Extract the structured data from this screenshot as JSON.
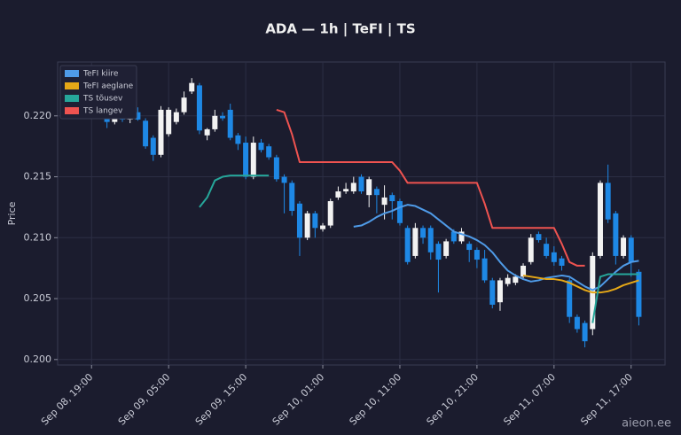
{
  "chart_data": {
    "type": "candlestick",
    "title": "ADA — 1h  |  TeFI  |  TS",
    "ylabel": "Price",
    "watermark": "aieon.ee",
    "x": [
      "Sep 08, 21:00",
      "Sep 08, 22:00",
      "Sep 08, 23:00",
      "Sep 09, 00:00",
      "Sep 09, 01:00",
      "Sep 09, 02:00",
      "Sep 09, 03:00",
      "Sep 09, 04:00",
      "Sep 09, 05:00",
      "Sep 09, 06:00",
      "Sep 09, 07:00",
      "Sep 09, 08:00",
      "Sep 09, 09:00",
      "Sep 09, 10:00",
      "Sep 09, 11:00",
      "Sep 09, 12:00",
      "Sep 09, 13:00",
      "Sep 09, 14:00",
      "Sep 09, 15:00",
      "Sep 09, 16:00",
      "Sep 09, 17:00",
      "Sep 09, 18:00",
      "Sep 09, 19:00",
      "Sep 09, 20:00",
      "Sep 09, 21:00",
      "Sep 09, 22:00",
      "Sep 09, 23:00",
      "Sep 10, 00:00",
      "Sep 10, 01:00",
      "Sep 10, 02:00",
      "Sep 10, 03:00",
      "Sep 10, 04:00",
      "Sep 10, 05:00",
      "Sep 10, 06:00",
      "Sep 10, 07:00",
      "Sep 10, 08:00",
      "Sep 10, 09:00",
      "Sep 10, 10:00",
      "Sep 10, 11:00",
      "Sep 10, 12:00",
      "Sep 10, 13:00",
      "Sep 10, 14:00",
      "Sep 10, 15:00",
      "Sep 10, 16:00",
      "Sep 10, 17:00",
      "Sep 10, 18:00",
      "Sep 10, 19:00",
      "Sep 10, 20:00",
      "Sep 10, 21:00",
      "Sep 10, 22:00",
      "Sep 10, 23:00",
      "Sep 11, 00:00",
      "Sep 11, 01:00",
      "Sep 11, 02:00",
      "Sep 11, 03:00",
      "Sep 11, 04:00",
      "Sep 11, 05:00",
      "Sep 11, 06:00",
      "Sep 11, 07:00",
      "Sep 11, 08:00",
      "Sep 11, 09:00",
      "Sep 11, 10:00",
      "Sep 11, 11:00",
      "Sep 11, 12:00",
      "Sep 11, 13:00",
      "Sep 11, 14:00",
      "Sep 11, 15:00",
      "Sep 11, 16:00",
      "Sep 11, 17:00",
      "Sep 11, 18:00"
    ],
    "open": [
      0.2203,
      0.2195,
      0.22,
      0.2197,
      0.2203,
      0.2196,
      0.2182,
      0.2168,
      0.2185,
      0.2195,
      0.2203,
      0.222,
      0.2225,
      0.2184,
      0.2189,
      0.22,
      0.2205,
      0.2184,
      0.2178,
      0.215,
      0.2178,
      0.2175,
      0.2166,
      0.215,
      0.2145,
      0.2128,
      0.21,
      0.212,
      0.2107,
      0.211,
      0.2133,
      0.2138,
      0.2138,
      0.215,
      0.2135,
      0.214,
      0.2127,
      0.2135,
      0.213,
      0.2108,
      0.2085,
      0.2108,
      0.2108,
      0.2095,
      0.2085,
      0.2105,
      0.2097,
      0.2095,
      0.209,
      0.2083,
      0.2065,
      0.2047,
      0.2062,
      0.2063,
      0.2068,
      0.208,
      0.2103,
      0.2095,
      0.2088,
      0.2083,
      0.2065,
      0.2035,
      0.203,
      0.2025,
      0.2085,
      0.2145,
      0.212,
      0.2085,
      0.21,
      0.2072
    ],
    "high": [
      0.2208,
      0.2205,
      0.2205,
      0.2206,
      0.2207,
      0.2198,
      0.2184,
      0.2208,
      0.2207,
      0.2206,
      0.222,
      0.2231,
      0.2227,
      0.219,
      0.2205,
      0.2203,
      0.221,
      0.2186,
      0.2183,
      0.2183,
      0.2181,
      0.2177,
      0.2168,
      0.2152,
      0.2147,
      0.213,
      0.2122,
      0.2122,
      0.2112,
      0.2132,
      0.2142,
      0.2145,
      0.215,
      0.2152,
      0.215,
      0.2142,
      0.2143,
      0.2137,
      0.2132,
      0.211,
      0.2112,
      0.211,
      0.211,
      0.2097,
      0.2099,
      0.2107,
      0.2108,
      0.2097,
      0.2092,
      0.209,
      0.2067,
      0.2067,
      0.207,
      0.207,
      0.2079,
      0.2103,
      0.2105,
      0.21,
      0.2093,
      0.2085,
      0.2067,
      0.2037,
      0.2032,
      0.2088,
      0.2147,
      0.216,
      0.2122,
      0.2102,
      0.2102,
      0.2074
    ],
    "low": [
      0.219,
      0.2193,
      0.2195,
      0.2194,
      0.2196,
      0.2173,
      0.2163,
      0.2166,
      0.2183,
      0.2193,
      0.2201,
      0.2218,
      0.2185,
      0.218,
      0.2187,
      0.2196,
      0.218,
      0.2172,
      0.2148,
      0.2148,
      0.217,
      0.2164,
      0.2146,
      0.212,
      0.2118,
      0.2085,
      0.2098,
      0.21,
      0.2105,
      0.2108,
      0.2131,
      0.2136,
      0.2136,
      0.2136,
      0.2125,
      0.212,
      0.2115,
      0.2115,
      0.211,
      0.2078,
      0.2083,
      0.2095,
      0.2082,
      0.2055,
      0.2083,
      0.2095,
      0.2095,
      0.208,
      0.2075,
      0.2063,
      0.2042,
      0.204,
      0.206,
      0.2061,
      0.2066,
      0.2078,
      0.2096,
      0.2083,
      0.2077,
      0.2073,
      0.203,
      0.2022,
      0.201,
      0.202,
      0.2083,
      0.2112,
      0.2078,
      0.2083,
      0.2068,
      0.2028
    ],
    "close": [
      0.2195,
      0.22,
      0.2197,
      0.2203,
      0.2197,
      0.2175,
      0.2168,
      0.2205,
      0.2205,
      0.2203,
      0.2215,
      0.2227,
      0.2188,
      0.2189,
      0.22,
      0.2198,
      0.2182,
      0.2177,
      0.215,
      0.2178,
      0.2172,
      0.2166,
      0.2148,
      0.2145,
      0.2122,
      0.21,
      0.212,
      0.2108,
      0.211,
      0.213,
      0.2138,
      0.214,
      0.2145,
      0.2138,
      0.2148,
      0.2135,
      0.2133,
      0.213,
      0.2112,
      0.208,
      0.2108,
      0.21,
      0.2088,
      0.2082,
      0.2097,
      0.2097,
      0.2105,
      0.209,
      0.2082,
      0.2065,
      0.2045,
      0.2065,
      0.2067,
      0.2068,
      0.2077,
      0.21,
      0.2098,
      0.2085,
      0.208,
      0.2077,
      0.2035,
      0.2025,
      0.2015,
      0.2085,
      0.2145,
      0.2115,
      0.2085,
      0.21,
      0.208,
      0.2035
    ],
    "up_color": "#f2f2f2",
    "down_color": "#1e88e5",
    "series": [
      {
        "name": "TeFI kiire",
        "color": "#4f9be8",
        "values": [
          null,
          null,
          null,
          null,
          null,
          null,
          null,
          null,
          null,
          null,
          null,
          null,
          null,
          null,
          null,
          null,
          null,
          null,
          null,
          null,
          null,
          null,
          null,
          null,
          null,
          null,
          null,
          null,
          null,
          null,
          null,
          null,
          0.2109,
          0.211,
          0.2113,
          0.2117,
          0.212,
          0.2122,
          0.2125,
          0.2127,
          0.2126,
          0.2123,
          0.212,
          0.2115,
          0.211,
          0.2105,
          0.2103,
          0.2101,
          0.2098,
          0.2094,
          0.2088,
          0.208,
          0.2073,
          0.2069,
          0.2066,
          0.2064,
          0.2065,
          0.2067,
          0.2068,
          0.2069,
          0.2068,
          0.2064,
          0.206,
          0.2057,
          0.206,
          0.2066,
          0.2072,
          0.2077,
          0.208,
          0.2081
        ]
      },
      {
        "name": "TeFI aeglane",
        "color": "#e6a817",
        "values": [
          null,
          null,
          null,
          null,
          null,
          null,
          null,
          null,
          null,
          null,
          null,
          null,
          null,
          null,
          null,
          null,
          null,
          null,
          null,
          null,
          null,
          null,
          null,
          null,
          null,
          null,
          null,
          null,
          null,
          null,
          null,
          null,
          null,
          null,
          null,
          null,
          null,
          null,
          null,
          null,
          null,
          null,
          null,
          null,
          null,
          null,
          null,
          null,
          null,
          null,
          null,
          null,
          null,
          null,
          0.2069,
          0.2068,
          0.2067,
          0.2066,
          0.2066,
          0.2065,
          0.2063,
          0.206,
          0.2057,
          0.2055,
          0.2055,
          0.2056,
          0.2058,
          0.2061,
          0.2063,
          0.2065
        ]
      },
      {
        "name": "TS tõusev",
        "color": "#26a69a",
        "values": [
          null,
          null,
          null,
          null,
          null,
          null,
          null,
          null,
          null,
          null,
          null,
          null,
          0.2125,
          0.2133,
          0.2147,
          0.215,
          0.2151,
          0.2151,
          0.2151,
          0.2151,
          0.2151,
          0.2151,
          null,
          null,
          null,
          null,
          null,
          null,
          null,
          null,
          null,
          null,
          null,
          null,
          null,
          null,
          null,
          null,
          null,
          null,
          null,
          null,
          null,
          null,
          null,
          null,
          null,
          null,
          null,
          null,
          null,
          null,
          null,
          null,
          null,
          null,
          null,
          null,
          null,
          null,
          null,
          null,
          null,
          0.203,
          0.2068,
          0.207,
          0.207,
          0.207,
          0.207,
          0.207
        ]
      },
      {
        "name": "TS langev",
        "color": "#ef5350",
        "values": [
          null,
          null,
          null,
          null,
          null,
          null,
          null,
          null,
          null,
          null,
          null,
          null,
          null,
          null,
          null,
          null,
          null,
          null,
          null,
          null,
          null,
          null,
          0.2205,
          0.2203,
          0.2185,
          0.2162,
          0.2162,
          0.2162,
          0.2162,
          0.2162,
          0.2162,
          0.2162,
          0.2162,
          0.2162,
          0.2162,
          0.2162,
          0.2162,
          0.2162,
          0.2155,
          0.2145,
          0.2145,
          0.2145,
          0.2145,
          0.2145,
          0.2145,
          0.2145,
          0.2145,
          0.2145,
          0.2145,
          0.2128,
          0.2108,
          0.2108,
          0.2108,
          0.2108,
          0.2108,
          0.2108,
          0.2108,
          0.2108,
          0.2108,
          0.2095,
          0.208,
          0.2077,
          0.2077,
          null,
          null,
          null,
          null,
          null,
          null,
          null
        ]
      }
    ],
    "xlim": [
      "Sep 08, 14:36",
      "Sep 11, 21:24"
    ],
    "xticks": [
      "Sep 08, 19:00",
      "Sep 09, 05:00",
      "Sep 09, 15:00",
      "Sep 10, 01:00",
      "Sep 10, 11:00",
      "Sep 10, 21:00",
      "Sep 11, 07:00",
      "Sep 11, 17:00"
    ],
    "ylim": [
      0.19955,
      0.22442
    ],
    "yticks": [
      {
        "value": 0.2,
        "label": "0.200"
      },
      0.205,
      {
        "value": 0.21,
        "label": "0.210"
      },
      0.215,
      {
        "value": 0.22,
        "label": "0.220"
      }
    ],
    "grid": true,
    "legend": "upper left"
  }
}
